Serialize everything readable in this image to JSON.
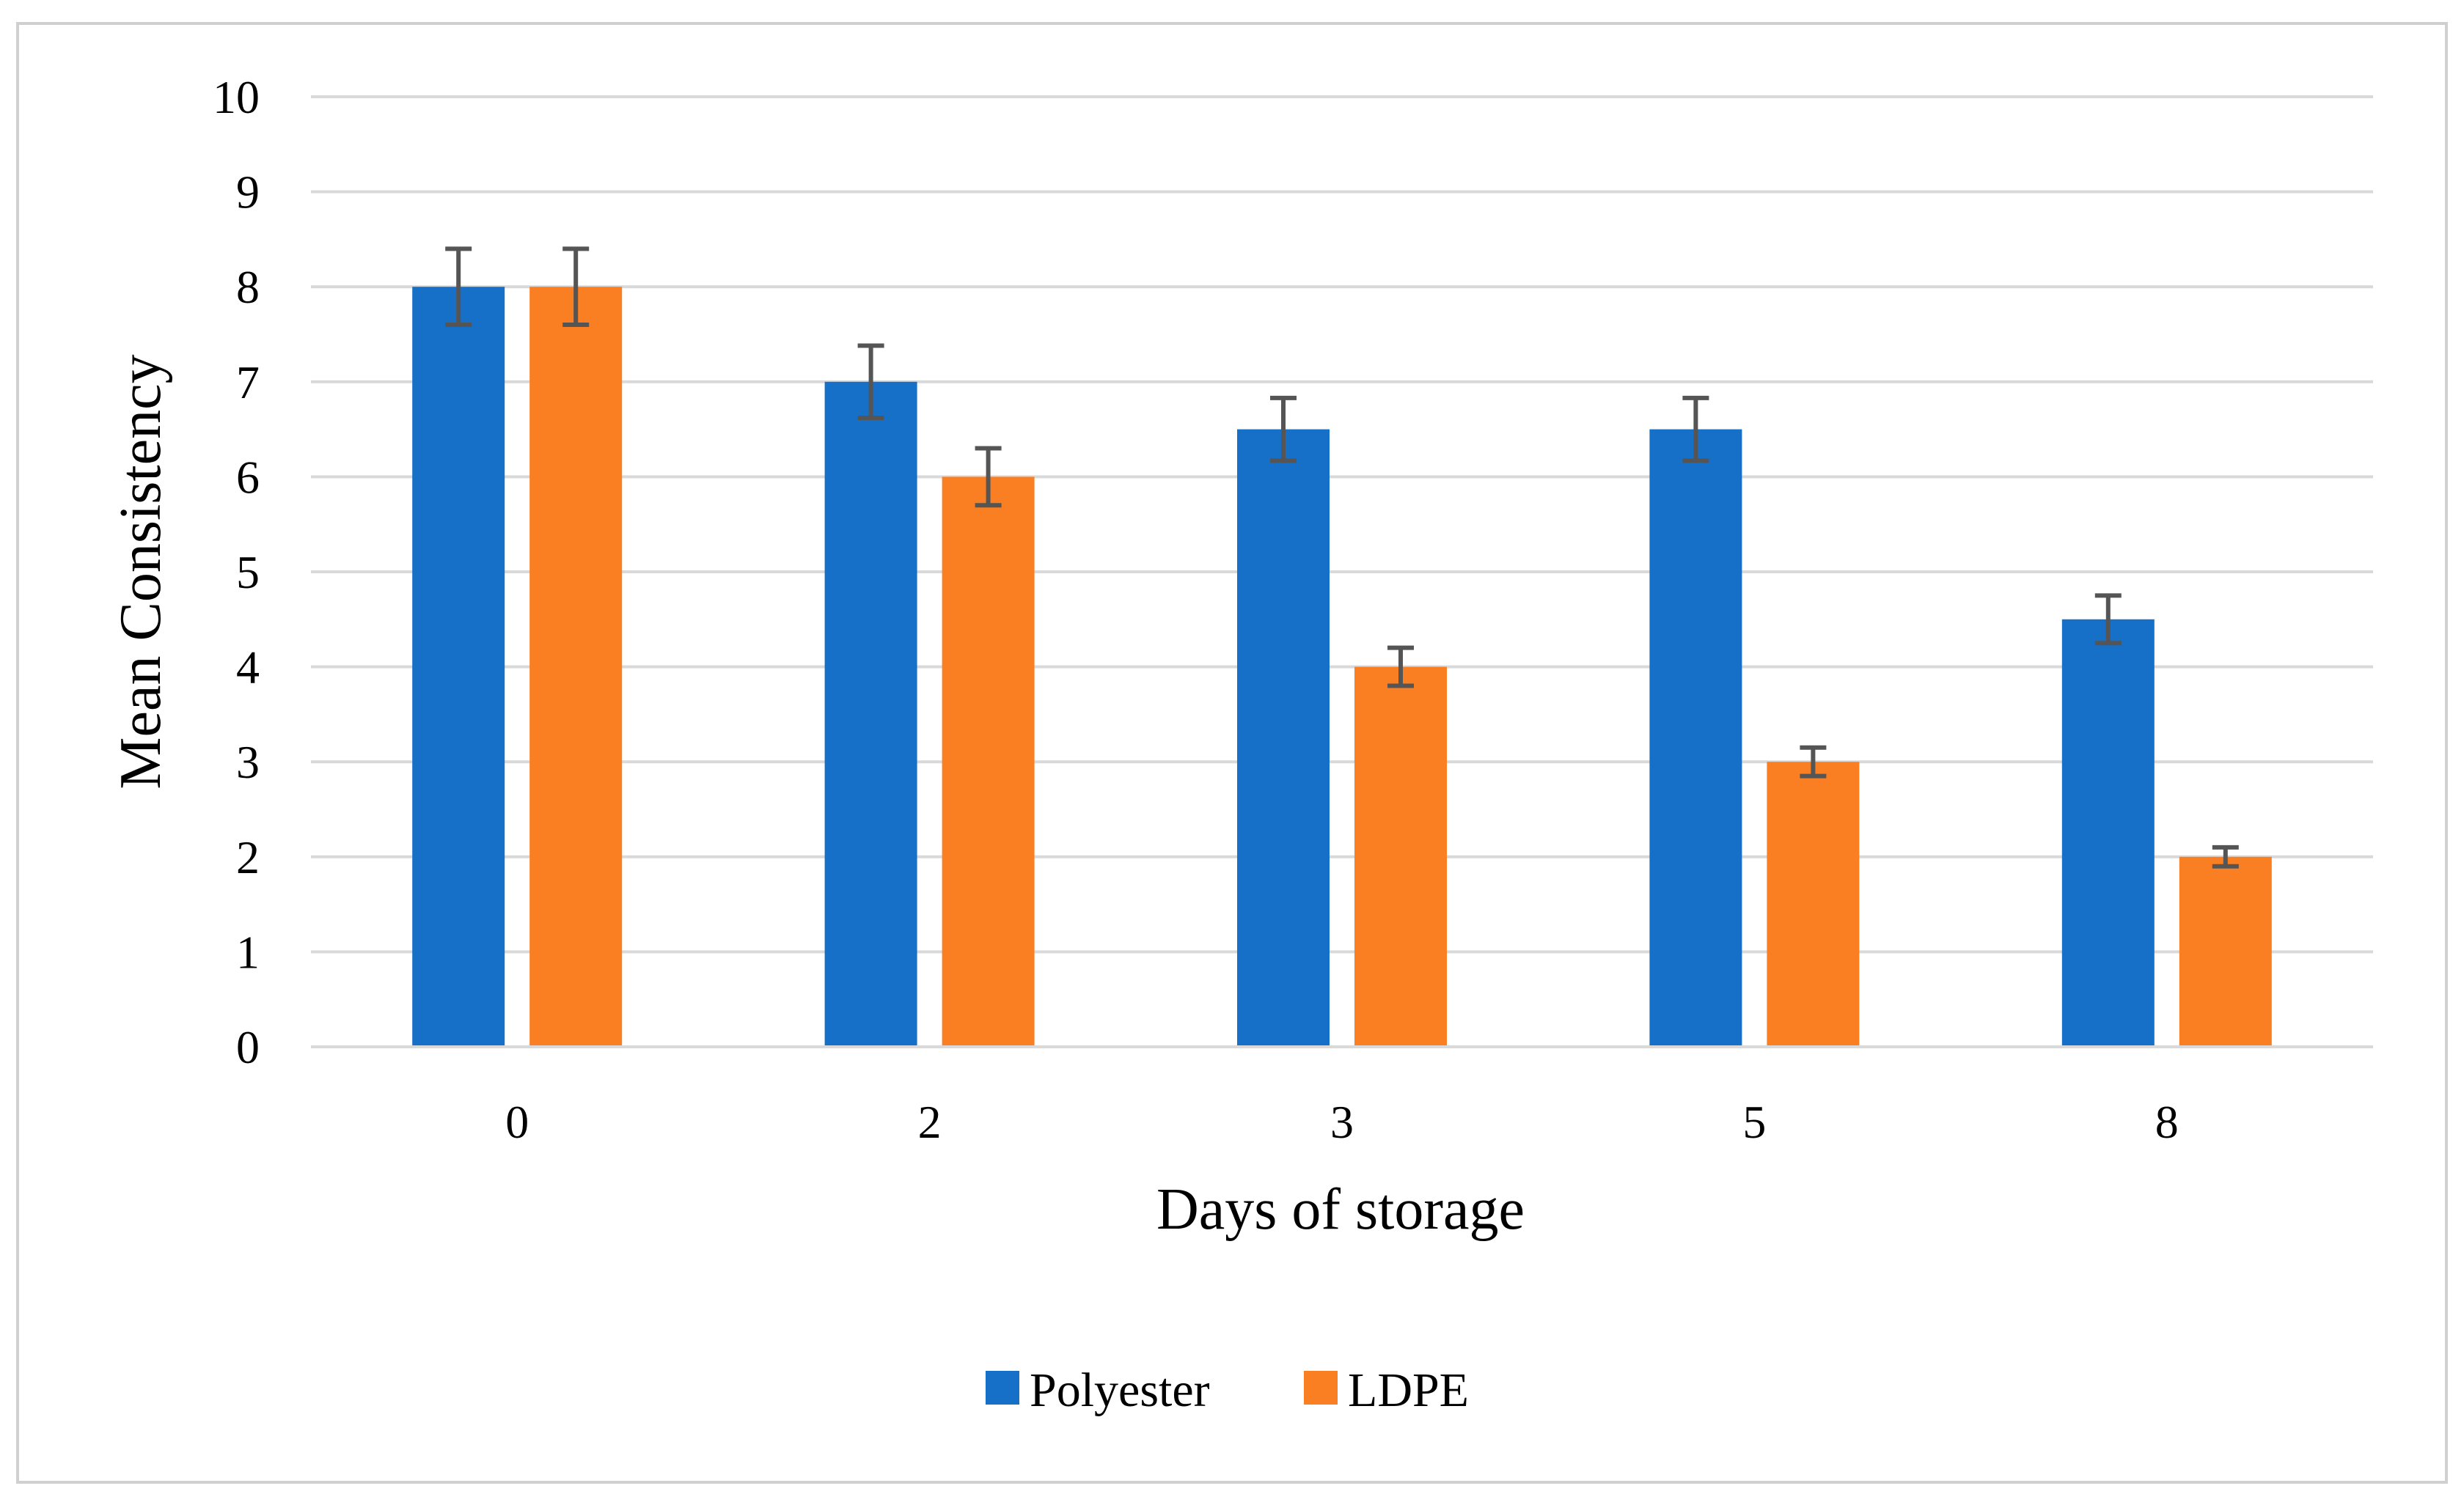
{
  "chart_data": {
    "type": "bar",
    "title": "",
    "xlabel": "Days of storage",
    "ylabel": "Mean Consistency",
    "categories": [
      "0",
      "2",
      "3",
      "5",
      "8"
    ],
    "ylim": [
      0,
      10
    ],
    "yticks": [
      "0",
      "1",
      "2",
      "3",
      "4",
      "5",
      "6",
      "7",
      "8",
      "9",
      "10"
    ],
    "grid": true,
    "legend_position": "bottom-center",
    "series": [
      {
        "name": "Polyester",
        "color": "#1670C8",
        "values": [
          8,
          7,
          6.5,
          6.5,
          4.5
        ],
        "errors": [
          0.4,
          0.38,
          0.33,
          0.33,
          0.25
        ]
      },
      {
        "name": "LDPE",
        "color": "#FA7E22",
        "values": [
          8,
          6,
          4,
          3,
          2
        ],
        "errors": [
          0.4,
          0.3,
          0.2,
          0.15,
          0.1
        ]
      }
    ],
    "error_bar_color": "#555555",
    "gridline_color": "#D9D9D9"
  }
}
